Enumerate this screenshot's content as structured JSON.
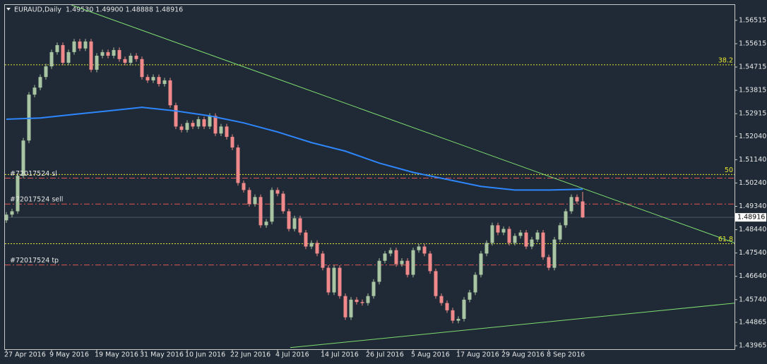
{
  "chart_data": {
    "type": "candlestick",
    "title": "EURAUD,Daily",
    "last_ohlc_label": "1.49530 1.49900 1.48888 1.48916",
    "categories": [
      "27 Apr 2016",
      null,
      null,
      null,
      null,
      null,
      null,
      null,
      "9 May 2016",
      null,
      null,
      null,
      null,
      null,
      null,
      null,
      "19 May 2016",
      null,
      null,
      null,
      null,
      null,
      null,
      null,
      "31 May 2016",
      null,
      null,
      null,
      null,
      null,
      null,
      null,
      "10 Jun 2016",
      null,
      null,
      null,
      null,
      null,
      null,
      null,
      "22 Jun 2016",
      null,
      null,
      null,
      null,
      null,
      null,
      null,
      "4 Jul 2016",
      null,
      null,
      null,
      null,
      null,
      null,
      null,
      "14 Jul 2016",
      null,
      null,
      null,
      null,
      null,
      null,
      null,
      "26 Jul 2016",
      null,
      null,
      null,
      null,
      null,
      null,
      null,
      "5 Aug 2016",
      null,
      null,
      null,
      null,
      null,
      null,
      null,
      "17 Aug 2016",
      null,
      null,
      null,
      null,
      null,
      null,
      null,
      "29 Aug 2016",
      null,
      null,
      null,
      null,
      null,
      null,
      null,
      "8 Sep 2016",
      null,
      null,
      null,
      null,
      null,
      null
    ],
    "open": [
      1.488,
      1.4902,
      1.4915,
      1.5052,
      1.5188,
      1.5365,
      1.5392,
      1.5433,
      1.5474,
      1.5529,
      1.5556,
      1.5488,
      1.5529,
      1.557,
      1.5543,
      1.557,
      1.5461,
      1.5515,
      1.5529,
      1.5515,
      1.5537,
      1.5502,
      1.5488,
      1.5515,
      1.5502,
      1.5433,
      1.542,
      1.5433,
      1.5406,
      1.542,
      1.5324,
      1.5242,
      1.5229,
      1.5256,
      1.5242,
      1.527,
      1.5242,
      1.5283,
      1.5215,
      1.5242,
      1.5202,
      1.5161,
      1.5024,
      1.4997,
      1.4943,
      1.497,
      1.4861,
      1.4875,
      1.4997,
      1.4983,
      1.4915,
      1.4847,
      1.4888,
      1.4833,
      1.4779,
      1.4793,
      1.4752,
      1.4697,
      1.4602,
      1.4697,
      1.4588,
      1.4506,
      1.4574,
      1.4565,
      1.4561,
      1.4588,
      1.4643,
      1.4724,
      1.4752,
      1.4765,
      1.4711,
      1.4724,
      1.467,
      1.4765,
      1.4779,
      1.4752,
      1.4684,
      1.4588,
      1.4561,
      1.4533,
      1.4493,
      1.45,
      1.4574,
      1.4602,
      1.467,
      1.4752,
      1.4793,
      1.4861,
      1.4833,
      1.4847,
      1.4793,
      1.482,
      1.4833,
      1.4779,
      1.4806,
      1.4833,
      1.4738,
      1.4697,
      1.4806,
      1.4861,
      1.4915,
      1.497,
      1.4953
    ],
    "high": [
      1.4912,
      1.4925,
      1.5062,
      1.5198,
      1.5375,
      1.5402,
      1.5443,
      1.5484,
      1.5539,
      1.5566,
      1.5566,
      1.5539,
      1.558,
      1.558,
      1.558,
      1.558,
      1.5525,
      1.5539,
      1.5539,
      1.5547,
      1.5547,
      1.5512,
      1.5525,
      1.5525,
      1.5512,
      1.5443,
      1.5443,
      1.5443,
      1.543,
      1.543,
      1.5334,
      1.5252,
      1.5266,
      1.5266,
      1.528,
      1.528,
      1.5293,
      1.5293,
      1.5252,
      1.5252,
      1.5212,
      1.5171,
      1.5034,
      1.5007,
      1.498,
      1.498,
      1.4885,
      1.5007,
      1.5007,
      1.4993,
      1.4925,
      1.4898,
      1.4898,
      1.4843,
      1.4803,
      1.4803,
      1.4762,
      1.4707,
      1.4707,
      1.4707,
      1.4598,
      1.4584,
      1.4584,
      1.4575,
      1.4598,
      1.4653,
      1.4734,
      1.4762,
      1.4775,
      1.4775,
      1.4734,
      1.4734,
      1.4775,
      1.4789,
      1.4789,
      1.4762,
      1.4694,
      1.4598,
      1.4571,
      1.4543,
      1.451,
      1.4584,
      1.4612,
      1.468,
      1.4762,
      1.4803,
      1.4871,
      1.4871,
      1.4857,
      1.4857,
      1.483,
      1.4843,
      1.4843,
      1.4816,
      1.4843,
      1.4843,
      1.4748,
      1.4816,
      1.4871,
      1.4925,
      1.498,
      1.498,
      1.499
    ],
    "low": [
      1.487,
      1.4892,
      1.4905,
      1.5042,
      1.5178,
      1.5355,
      1.5382,
      1.5423,
      1.5464,
      1.5519,
      1.5478,
      1.5478,
      1.5519,
      1.5533,
      1.5533,
      1.5451,
      1.5451,
      1.5505,
      1.5505,
      1.5505,
      1.5492,
      1.5478,
      1.5478,
      1.5492,
      1.5423,
      1.541,
      1.541,
      1.5396,
      1.5396,
      1.5314,
      1.5232,
      1.5219,
      1.5219,
      1.5232,
      1.5232,
      1.5232,
      1.5232,
      1.5205,
      1.5205,
      1.5192,
      1.5151,
      1.5014,
      1.4987,
      1.4933,
      1.4933,
      1.4851,
      1.4851,
      1.4865,
      1.4973,
      1.4905,
      1.4837,
      1.4837,
      1.4823,
      1.4769,
      1.4769,
      1.4742,
      1.4687,
      1.4592,
      1.4592,
      1.4578,
      1.4496,
      1.4496,
      1.4555,
      1.4551,
      1.4551,
      1.4578,
      1.4633,
      1.4714,
      1.4742,
      1.4701,
      1.4701,
      1.466,
      1.466,
      1.4755,
      1.4742,
      1.4674,
      1.4578,
      1.4551,
      1.4523,
      1.4483,
      1.4483,
      1.449,
      1.4564,
      1.4592,
      1.466,
      1.4742,
      1.4783,
      1.4823,
      1.4823,
      1.4783,
      1.4783,
      1.481,
      1.4769,
      1.4769,
      1.4796,
      1.4728,
      1.4687,
      1.4687,
      1.4796,
      1.4851,
      1.4905,
      1.4943,
      1.48888
    ],
    "close": [
      1.4902,
      1.4915,
      1.5052,
      1.5188,
      1.5365,
      1.5392,
      1.5433,
      1.5474,
      1.5529,
      1.5556,
      1.5488,
      1.5529,
      1.557,
      1.5543,
      1.557,
      1.5461,
      1.5515,
      1.5529,
      1.5515,
      1.5537,
      1.5502,
      1.5488,
      1.5515,
      1.5502,
      1.5433,
      1.542,
      1.5433,
      1.5406,
      1.542,
      1.5324,
      1.5242,
      1.5229,
      1.5256,
      1.5242,
      1.527,
      1.5242,
      1.5283,
      1.5215,
      1.5242,
      1.5202,
      1.5161,
      1.5024,
      1.4997,
      1.4943,
      1.497,
      1.4861,
      1.4875,
      1.4997,
      1.4983,
      1.4915,
      1.4847,
      1.4888,
      1.4833,
      1.4779,
      1.4793,
      1.4752,
      1.4697,
      1.4602,
      1.4697,
      1.4588,
      1.4506,
      1.4574,
      1.4565,
      1.4561,
      1.4588,
      1.4643,
      1.4724,
      1.4752,
      1.4765,
      1.4711,
      1.4724,
      1.467,
      1.4765,
      1.4779,
      1.4752,
      1.4684,
      1.4588,
      1.4561,
      1.4533,
      1.4493,
      1.45,
      1.4574,
      1.4602,
      1.467,
      1.4752,
      1.4793,
      1.4861,
      1.4833,
      1.4847,
      1.4793,
      1.482,
      1.4833,
      1.4779,
      1.4806,
      1.4833,
      1.4738,
      1.4697,
      1.4806,
      1.4861,
      1.4915,
      1.497,
      1.4953,
      1.48916
    ],
    "up_color": "#a9c4a1",
    "down_color": "#f08a8a",
    "ylim": [
      1.4383,
      1.5711
    ],
    "yticks": [
      1.56515,
      1.55615,
      1.54715,
      1.53815,
      1.52915,
      {
        "value": 1.5204,
        "label": "1.52040"
      },
      {
        "value": 1.5114,
        "label": "1.51140"
      },
      {
        "value": 1.5024,
        "label": "1.50240"
      },
      {
        "value": 1.4934,
        "label": "1.49340"
      },
      {
        "value": 1.4844,
        "label": "1.48440"
      },
      {
        "value": 1.4754,
        "label": "1.47540"
      },
      {
        "value": 1.4664,
        "label": "1.46640"
      },
      {
        "value": 1.4574,
        "label": "1.45740"
      },
      1.44865,
      1.43965
    ],
    "ma": {
      "color": "#2e86ff",
      "x": [
        0,
        6,
        12,
        18,
        24,
        30,
        36,
        42,
        48,
        54,
        60,
        66,
        72,
        78,
        84,
        90,
        96,
        102
      ],
      "values": [
        1.527,
        1.5275,
        1.5289,
        1.5302,
        1.5316,
        1.5302,
        1.5283,
        1.5256,
        1.5221,
        1.518,
        1.5147,
        1.5101,
        1.5065,
        1.5038,
        1.5011,
        1.4997,
        1.4997,
        1.5
      ]
    },
    "levels": [
      {
        "label": "38.2",
        "value": 1.548,
        "color": "#e6e62e",
        "style": "fib"
      },
      {
        "label": "50",
        "value": 1.5057,
        "color": "#e6e62e",
        "style": "fib"
      },
      {
        "label": "61.8",
        "value": 1.479,
        "color": "#e6e62e",
        "style": "fib"
      },
      {
        "label": "#72017524 sl",
        "value": 1.5043,
        "color": "#e05555",
        "style": "order"
      },
      {
        "label": "#72017524 sell",
        "value": 1.4943,
        "color": "#e05555",
        "style": "order"
      },
      {
        "label": "#72017524 tp",
        "value": 1.4708,
        "color": "#e05555",
        "style": "order"
      }
    ],
    "trendlines": [
      {
        "color": "#7fdc6f",
        "x": [
          11.5,
          132.75
        ],
        "values": [
          1.5711,
          1.4763
        ]
      },
      {
        "color": "#7fdc6f",
        "x": [
          50.25,
          132.75
        ],
        "values": [
          1.4389,
          1.4569
        ]
      }
    ],
    "current_price": 1.48916
  }
}
